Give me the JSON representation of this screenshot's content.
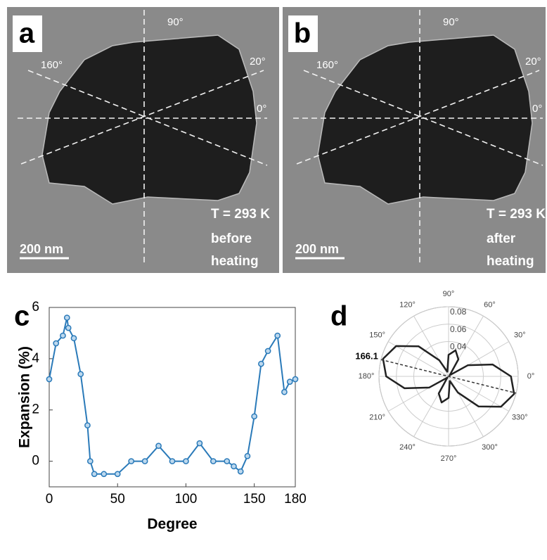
{
  "panels": [
    {
      "label": "a",
      "angle_labels": [
        "90°",
        "160°",
        "20°",
        "0°"
      ],
      "temperature": "T = 293 K",
      "condition": [
        "before",
        "heating"
      ],
      "scale_bar": "200 nm"
    },
    {
      "label": "b",
      "angle_labels": [
        "90°",
        "160°",
        "20°",
        "0°"
      ],
      "temperature": "T = 293 K",
      "condition": [
        "after",
        "heating"
      ],
      "scale_bar": "200 nm"
    }
  ],
  "chart_data": [
    {
      "type": "line",
      "label": "c",
      "xlabel": "Degree",
      "ylabel": "Expansion (%)",
      "x": [
        0,
        5,
        10,
        13,
        14,
        18,
        23,
        28,
        30,
        33,
        40,
        50,
        60,
        70,
        80,
        90,
        100,
        110,
        120,
        130,
        135,
        140,
        145,
        150,
        155,
        160,
        167,
        172,
        176,
        180
      ],
      "series": [
        {
          "color": "#2a7ab9",
          "values": [
            3.2,
            4.6,
            4.9,
            5.6,
            5.2,
            4.8,
            3.4,
            1.4,
            0,
            -0.5,
            -0.5,
            -0.5,
            0,
            0,
            0.6,
            0,
            0,
            0.7,
            0,
            0,
            -0.2,
            -0.4,
            0.2,
            1.75,
            3.8,
            4.3,
            4.9,
            2.7,
            3.1,
            3.2
          ]
        }
      ],
      "xlim": [
        0,
        180
      ],
      "ylim": [
        -1,
        6
      ],
      "xticks": [
        0,
        50,
        100,
        150,
        180
      ],
      "yticks": [
        0,
        2,
        4,
        6
      ]
    },
    {
      "type": "polar",
      "label": "d",
      "color": "#222222",
      "theta": [
        0,
        15,
        30,
        45,
        60,
        75,
        90,
        105,
        120,
        135,
        150,
        165,
        180,
        195,
        210,
        225,
        240,
        255,
        270,
        285,
        300,
        315,
        330,
        345
      ],
      "r": [
        0.0717,
        0.0525,
        0.0256,
        0.0019,
        0.0226,
        0.031,
        0.0247,
        0.0055,
        0.0214,
        0.0489,
        0.0696,
        0.078,
        0.0717,
        0.0525,
        0.0256,
        0.0019,
        0.0226,
        0.031,
        0.0247,
        0.0055,
        0.0214,
        0.0489,
        0.0696,
        0.078
      ],
      "rlim": [
        0,
        0.08
      ],
      "rticks": [
        0.04,
        0.06,
        0.08
      ],
      "thetaticks": [
        {
          "value": 0,
          "label": "0°"
        },
        {
          "value": 30,
          "label": "30°"
        },
        {
          "value": 60,
          "label": "60°"
        },
        {
          "value": 90,
          "label": "90°"
        },
        {
          "value": 120,
          "label": "120°"
        },
        {
          "value": 150,
          "label": "150°"
        },
        {
          "value": 180,
          "label": "180°"
        },
        {
          "value": 210,
          "label": "210°"
        },
        {
          "value": 240,
          "label": "240°"
        },
        {
          "value": 270,
          "label": "270°"
        },
        {
          "value": 300,
          "label": "300°"
        },
        {
          "value": 330,
          "label": "330°"
        }
      ],
      "annotation": 166.1
    }
  ]
}
